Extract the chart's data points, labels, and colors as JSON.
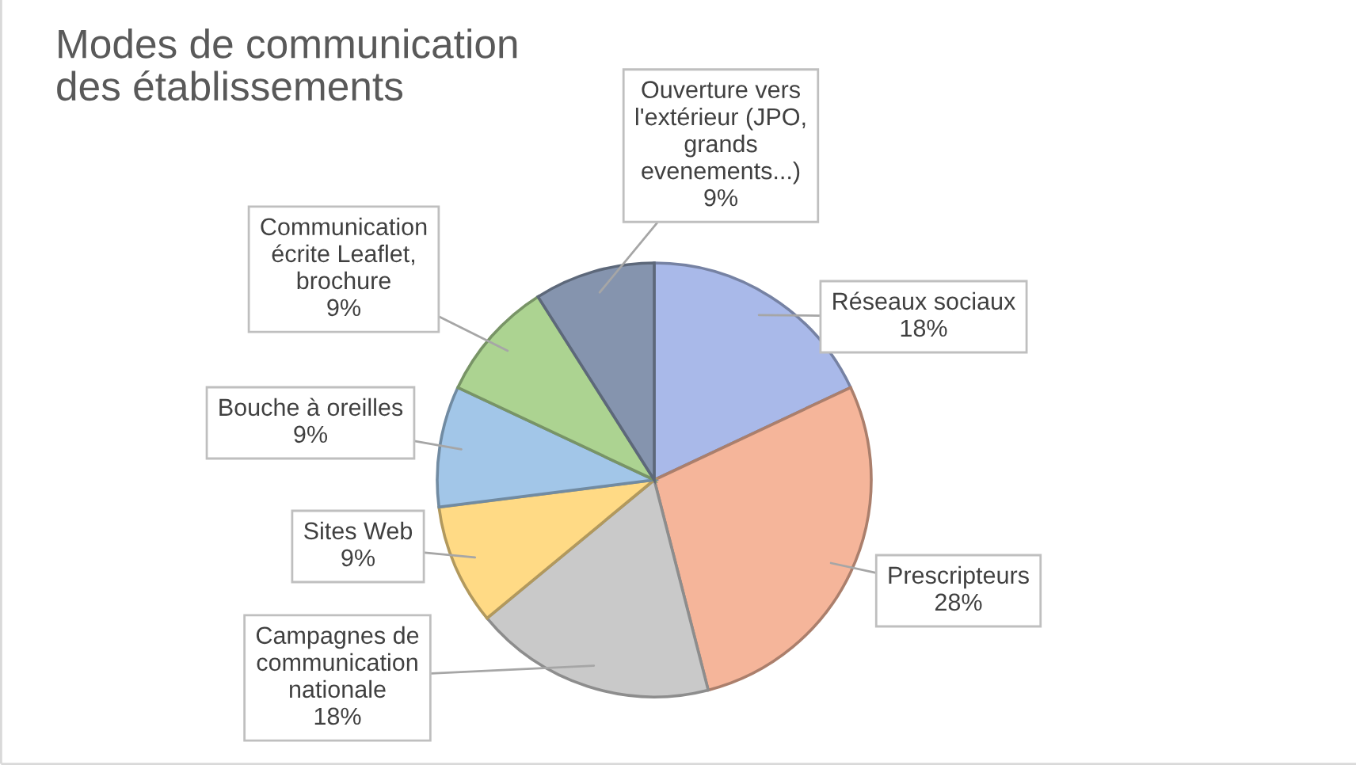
{
  "chart_data": {
    "type": "pie",
    "title": "Modes de communication\ndes établissements",
    "categories": [
      "Réseaux sociaux",
      "Prescripteurs",
      "Campagnes de\ncommunication\nnationale",
      "Sites Web",
      "Bouche à oreilles",
      "Communication\nécrite Leaflet,\nbrochure",
      "Ouverture vers\nl'extérieur (JPO,\ngrands\nevenements...)"
    ],
    "values": [
      18,
      28,
      18,
      9,
      9,
      9,
      9
    ],
    "value_labels": [
      "18%",
      "28%",
      "18%",
      "9%",
      "9%",
      "9%",
      "9%"
    ],
    "colors": [
      "#a9b9e9",
      "#f5b59a",
      "#c9c9c9",
      "#ffda85",
      "#a2c6e8",
      "#acd391",
      "#8594ae"
    ],
    "legend": false
  }
}
